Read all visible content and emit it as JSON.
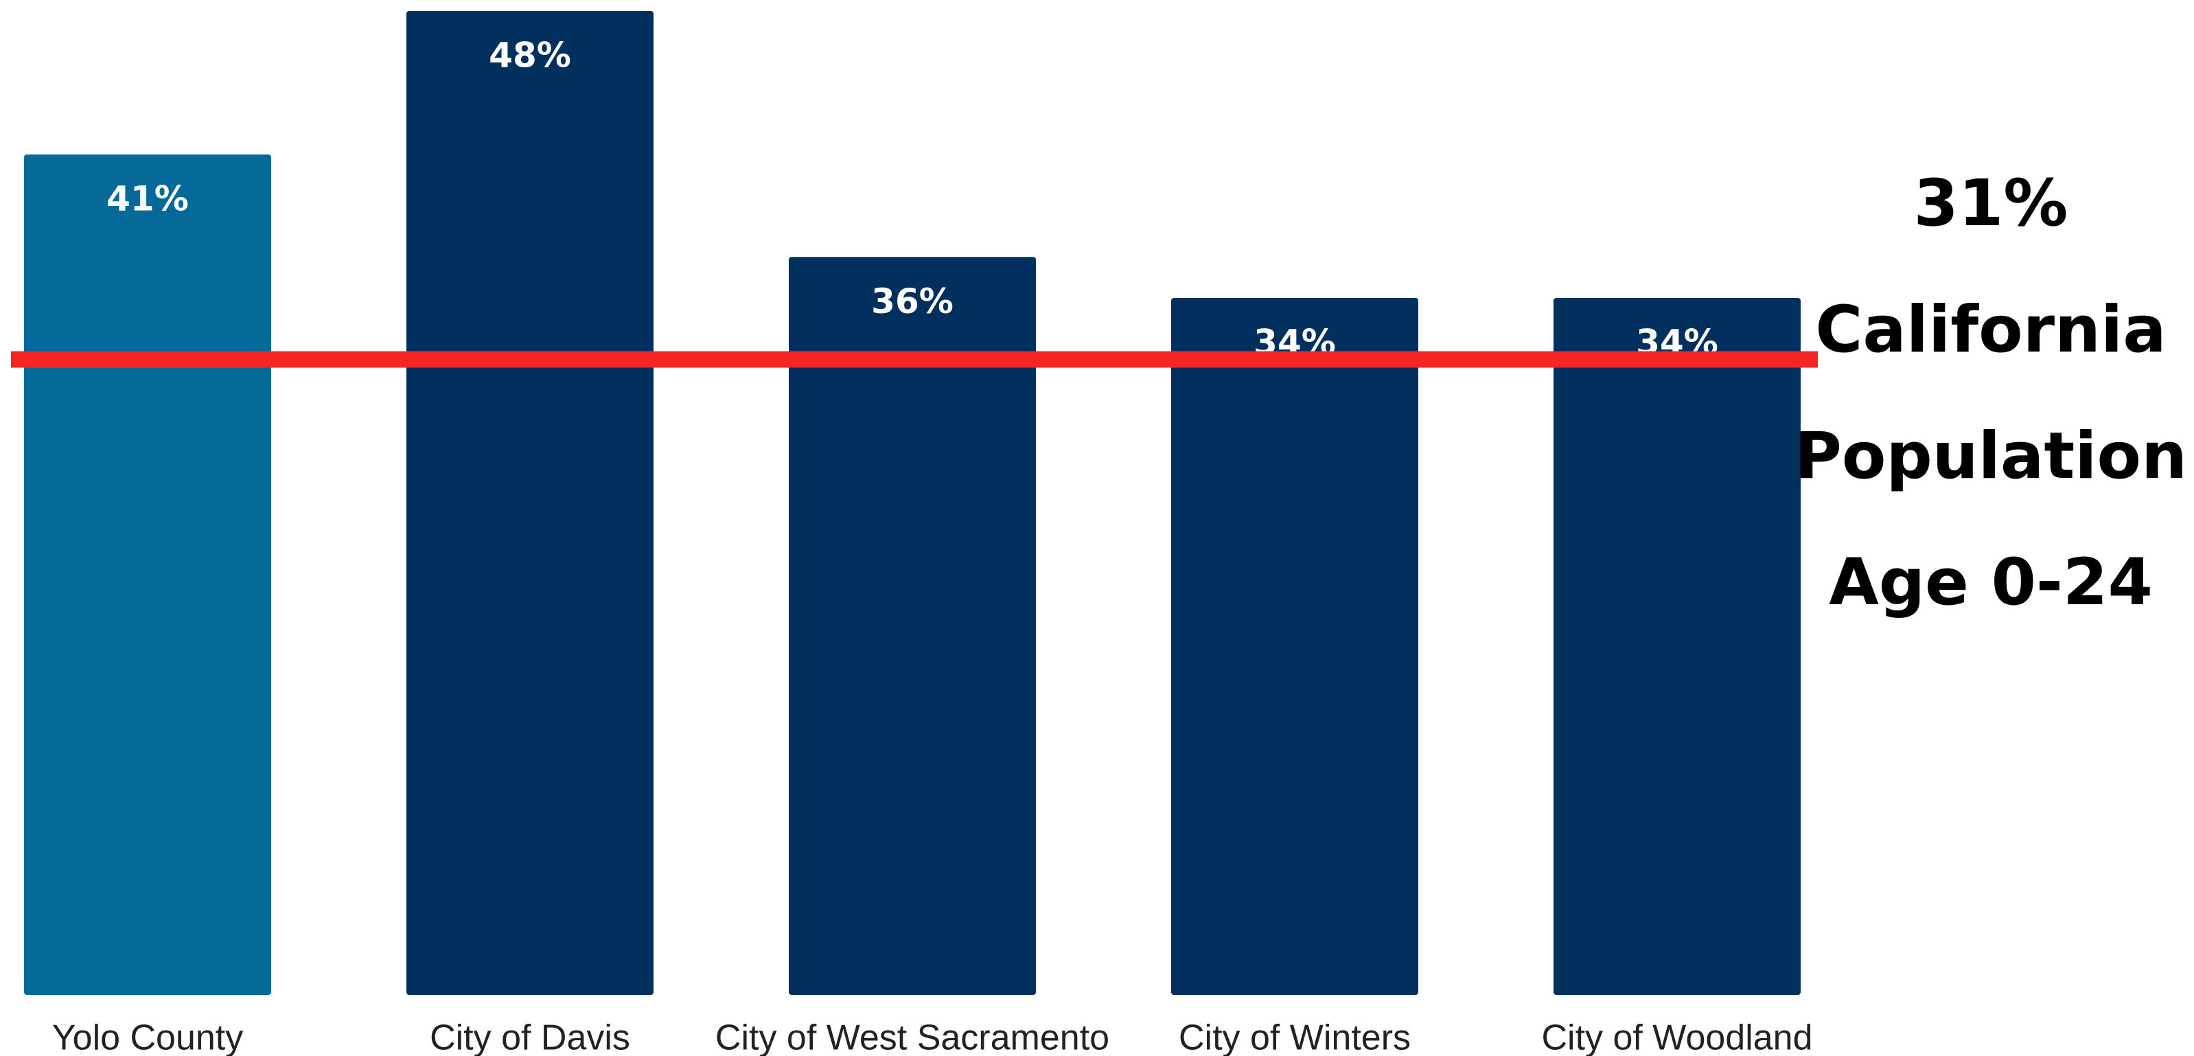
{
  "chart_data": {
    "type": "bar",
    "categories": [
      "Yolo County",
      "City of Davis",
      "City of West Sacramento",
      "City of Winters",
      "City of Woodland"
    ],
    "values": [
      41,
      48,
      36,
      34,
      34
    ],
    "value_labels": [
      "41%",
      "48%",
      "36%",
      "34%",
      "34%"
    ],
    "colors": [
      "#05699a",
      "#012f5e",
      "#012f5e",
      "#012f5e",
      "#012f5e"
    ],
    "ylim": [
      0,
      48
    ],
    "reference_line": {
      "value": 31,
      "label": "31%",
      "text": [
        "California",
        "Population",
        "Age 0-24"
      ],
      "color": "#f42525"
    }
  }
}
